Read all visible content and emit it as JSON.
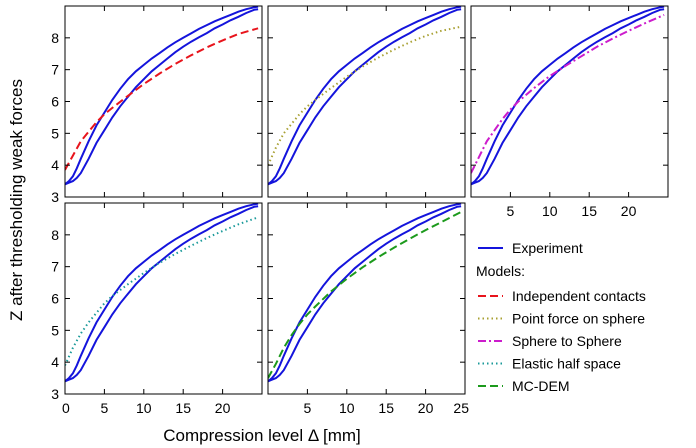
{
  "chart_data": [
    {
      "type": "line",
      "panel": "top-left",
      "model": "Independent contacts",
      "color": "#e8141c",
      "dash": "dashed",
      "xlim": [
        0,
        25
      ],
      "ylim": [
        3,
        9
      ],
      "show_xticks": false,
      "show_yticks": true,
      "model_curve": {
        "x": [
          0,
          1,
          2,
          3,
          4,
          5,
          6,
          8,
          10,
          12,
          14,
          16,
          18,
          20,
          22,
          24.5
        ],
        "y": [
          3.85,
          4.3,
          4.75,
          5.05,
          5.35,
          5.6,
          5.8,
          6.18,
          6.55,
          6.88,
          7.18,
          7.45,
          7.7,
          7.92,
          8.12,
          8.3
        ]
      }
    },
    {
      "type": "line",
      "panel": "top-middle",
      "model": "Point force on sphere",
      "color": "#a8a032",
      "dash": "dotted",
      "xlim": [
        0,
        25
      ],
      "ylim": [
        3,
        9
      ],
      "show_xticks": false,
      "show_yticks": false,
      "model_curve": {
        "x": [
          0,
          1,
          2,
          3,
          4,
          5,
          6,
          8,
          10,
          12,
          14,
          16,
          18,
          20,
          22,
          24.5
        ],
        "y": [
          4.0,
          4.55,
          5.0,
          5.3,
          5.6,
          5.85,
          6.05,
          6.42,
          6.78,
          7.1,
          7.38,
          7.63,
          7.86,
          8.06,
          8.22,
          8.35
        ]
      }
    },
    {
      "type": "line",
      "panel": "top-right",
      "model": "Sphere to Sphere",
      "color": "#cc1ccc",
      "dash": "dashdot",
      "xlim": [
        0,
        25
      ],
      "ylim": [
        3,
        9
      ],
      "show_xticks": true,
      "show_yticks": false,
      "model_curve": {
        "x": [
          0,
          1,
          2,
          3,
          4,
          5,
          6,
          8,
          10,
          12,
          14,
          16,
          18,
          20,
          22,
          24.5
        ],
        "y": [
          3.75,
          4.25,
          4.75,
          5.1,
          5.45,
          5.75,
          6.0,
          6.42,
          6.8,
          7.12,
          7.42,
          7.72,
          7.98,
          8.22,
          8.45,
          8.72
        ]
      }
    },
    {
      "type": "line",
      "panel": "bottom-left",
      "model": "Elastic half space",
      "color": "#1a9a9a",
      "dash": "dotted",
      "xlim": [
        0,
        25
      ],
      "ylim": [
        3,
        9
      ],
      "show_xticks": true,
      "show_yticks": true,
      "model_curve": {
        "x": [
          0,
          1,
          2,
          3,
          4,
          5,
          6,
          8,
          10,
          12,
          14,
          16,
          18,
          20,
          22,
          24.5
        ],
        "y": [
          3.9,
          4.45,
          4.9,
          5.25,
          5.55,
          5.85,
          6.08,
          6.45,
          6.8,
          7.12,
          7.4,
          7.66,
          7.9,
          8.12,
          8.33,
          8.55
        ]
      }
    },
    {
      "type": "line",
      "panel": "bottom-middle",
      "model": "MC-DEM",
      "color": "#1c9a1c",
      "dash": "dashed",
      "xlim": [
        0,
        25
      ],
      "ylim": [
        3,
        9
      ],
      "show_xticks": true,
      "show_yticks": false,
      "model_curve": {
        "x": [
          0,
          1,
          2,
          3,
          4,
          5,
          6,
          8,
          10,
          12,
          14,
          16,
          18,
          20,
          22,
          24.5
        ],
        "y": [
          3.5,
          3.95,
          4.45,
          4.85,
          5.2,
          5.5,
          5.75,
          6.22,
          6.62,
          6.98,
          7.3,
          7.6,
          7.88,
          8.15,
          8.4,
          8.72
        ]
      }
    }
  ],
  "experiment_curves": [
    {
      "x": [
        0,
        0.5,
        1,
        1.5,
        2,
        3,
        4,
        5,
        6,
        7,
        8,
        9,
        10,
        11,
        12,
        13,
        14,
        15,
        16,
        17,
        18,
        19,
        20,
        21,
        22,
        23,
        24,
        24.5
      ],
      "y": [
        3.4,
        3.45,
        3.5,
        3.6,
        3.75,
        4.2,
        4.7,
        5.1,
        5.5,
        5.85,
        6.15,
        6.45,
        6.7,
        6.95,
        7.15,
        7.35,
        7.55,
        7.72,
        7.88,
        8.02,
        8.15,
        8.3,
        8.42,
        8.55,
        8.66,
        8.78,
        8.88,
        8.9
      ]
    },
    {
      "x": [
        0,
        0.5,
        1,
        1.5,
        2,
        3,
        4,
        5,
        6,
        7,
        8,
        9,
        10,
        11,
        12,
        13,
        14,
        15,
        16,
        17,
        18,
        19,
        20,
        21,
        22,
        23,
        24,
        24.5
      ],
      "y": [
        3.4,
        3.5,
        3.65,
        3.9,
        4.2,
        4.75,
        5.25,
        5.65,
        6.05,
        6.4,
        6.7,
        6.95,
        7.15,
        7.35,
        7.52,
        7.7,
        7.86,
        8.0,
        8.14,
        8.28,
        8.4,
        8.52,
        8.62,
        8.72,
        8.82,
        8.9,
        8.96,
        8.98
      ]
    }
  ],
  "experiment_color": "#1414dc",
  "x_ticks_left": [
    "0",
    "5",
    "10",
    "15",
    "20"
  ],
  "x_ticks_other": [
    "5",
    "10",
    "15",
    "20"
  ],
  "x_ticks_bottom_middle": [
    "5",
    "10",
    "15",
    "20",
    "25"
  ],
  "y_ticks": [
    "3",
    "4",
    "5",
    "6",
    "7",
    "8"
  ],
  "xlabel": "Compression level Δ [mm]",
  "ylabel": "Z after thresholding weak forces",
  "legend": {
    "placement": "bottom-right",
    "experiment": "Experiment",
    "models_heading": "Models:",
    "items": [
      "Independent contacts",
      "Point force on sphere",
      "Sphere to Sphere",
      "Elastic half space",
      "MC-DEM"
    ]
  }
}
